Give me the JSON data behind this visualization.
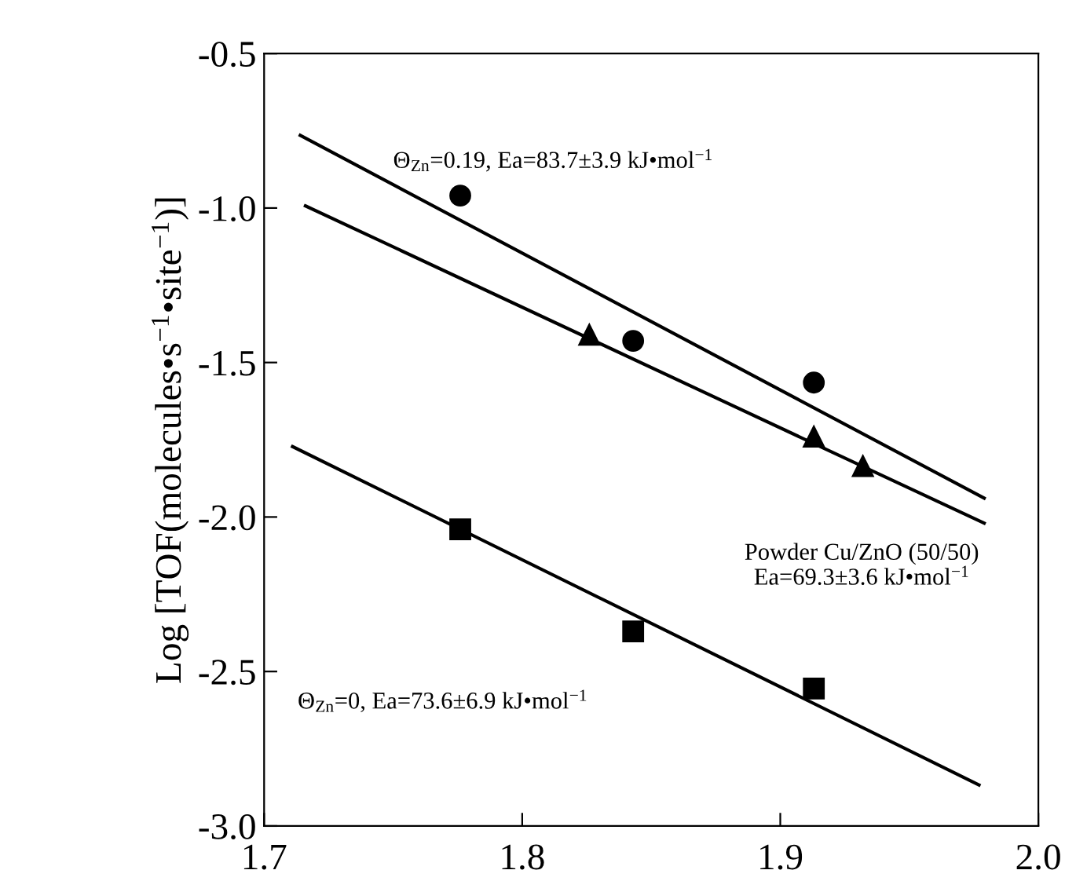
{
  "chart_data": {
    "type": "scatter",
    "ylabel": "Log [TOF(molecules•s$^{−1}$•site$^{−1}$)]",
    "xlim": [
      1.7,
      2.0
    ],
    "xticks": [
      1.7,
      1.8,
      1.9,
      {
        "value": 2,
        "label": "2.0"
      }
    ],
    "ylim": [
      -3.0,
      -0.5
    ],
    "yticks": [
      {
        "value": -3,
        "label": "-3.0"
      },
      -2.5,
      {
        "value": -2,
        "label": "-2.0"
      },
      -1.5,
      {
        "value": -1,
        "label": "-1.0"
      },
      -0.5
    ],
    "grid": false,
    "series": [
      {
        "marker": "circle",
        "color": "#000000",
        "x": [
          1.776,
          1.843,
          1.913
        ],
        "values": [
          -0.96,
          -1.43,
          -1.565
        ]
      },
      {
        "marker": "triangle",
        "color": "#000000",
        "x": [
          1.826,
          1.913,
          1.932
        ],
        "values": [
          -1.41,
          -1.74,
          -1.835
        ]
      },
      {
        "marker": "square",
        "color": "#000000",
        "x": [
          1.776,
          1.843,
          1.913
        ],
        "values": [
          -2.04,
          -2.37,
          -2.555
        ]
      },
      {
        "type": "line",
        "marker": "none",
        "color": "#000000",
        "x": [
          1.714,
          1.979
        ],
        "values": [
          -0.765,
          -1.939
        ]
      },
      {
        "type": "line",
        "marker": "none",
        "color": "#000000",
        "x": [
          1.716,
          1.979
        ],
        "values": [
          -0.993,
          -2.02
        ]
      },
      {
        "type": "line",
        "marker": "none",
        "color": "#000000",
        "x": [
          1.711,
          1.977
        ],
        "values": [
          -1.772,
          -2.867
        ]
      }
    ],
    "annotations": [
      "Θ$_{Zn}$=0.19, Ea=83.7±3.9 kJ•mol$^{−1}$",
      "Powder Cu/ZnO (50/50)\nEa=69.3±3.6 kJ•mol$^{−1}$",
      "Θ$_{Zn}$=0, Ea=73.6±6.9 kJ•mol$^{−1}$"
    ]
  }
}
